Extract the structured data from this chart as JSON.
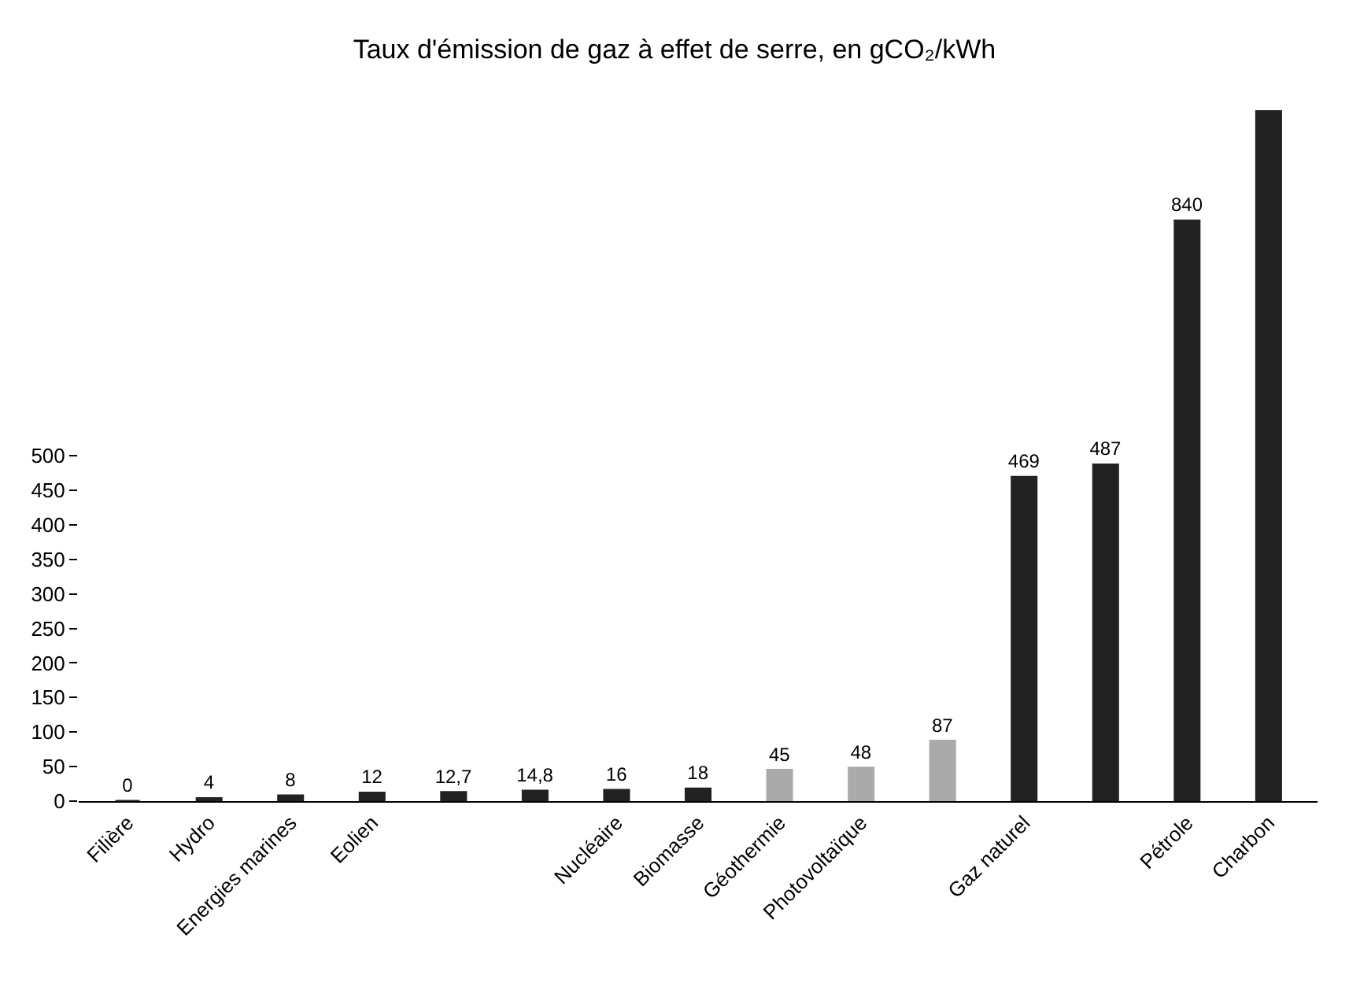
{
  "chart_data": {
    "type": "bar",
    "title": "Taux d'émission de gaz à effet de serre, en gCO₂/kWh",
    "categories": [
      "Filière",
      "Hydro",
      "Energies marines",
      "Eolien",
      null,
      null,
      "Nucléaire",
      "Biomasse",
      "Géothermie",
      "Photovoltaïque",
      null,
      "Gaz naturel",
      null,
      "Pétrole",
      "Charbon"
    ],
    "values": [
      0,
      4,
      8,
      12,
      12.7,
      14.8,
      16,
      18,
      45,
      48,
      87,
      469,
      487,
      840,
      1000
    ],
    "value_labels": [
      "0",
      "4",
      "8",
      "12",
      "12,7",
      "14,8",
      "16",
      "18",
      "45",
      "48",
      "87",
      "469",
      "487",
      "840",
      null
    ],
    "colors": [
      "#222222",
      "#222222",
      "#222222",
      "#222222",
      "#222222",
      "#222222",
      "#222222",
      "#222222",
      "#aaaaaa",
      "#aaaaaa",
      "#aaaaaa",
      "#222222",
      "#222222",
      "#222222",
      "#222222"
    ],
    "ylim": [
      0,
      1000
    ],
    "yticks": [
      0,
      50,
      100,
      150,
      200,
      250,
      300,
      350,
      400,
      450,
      500
    ]
  }
}
